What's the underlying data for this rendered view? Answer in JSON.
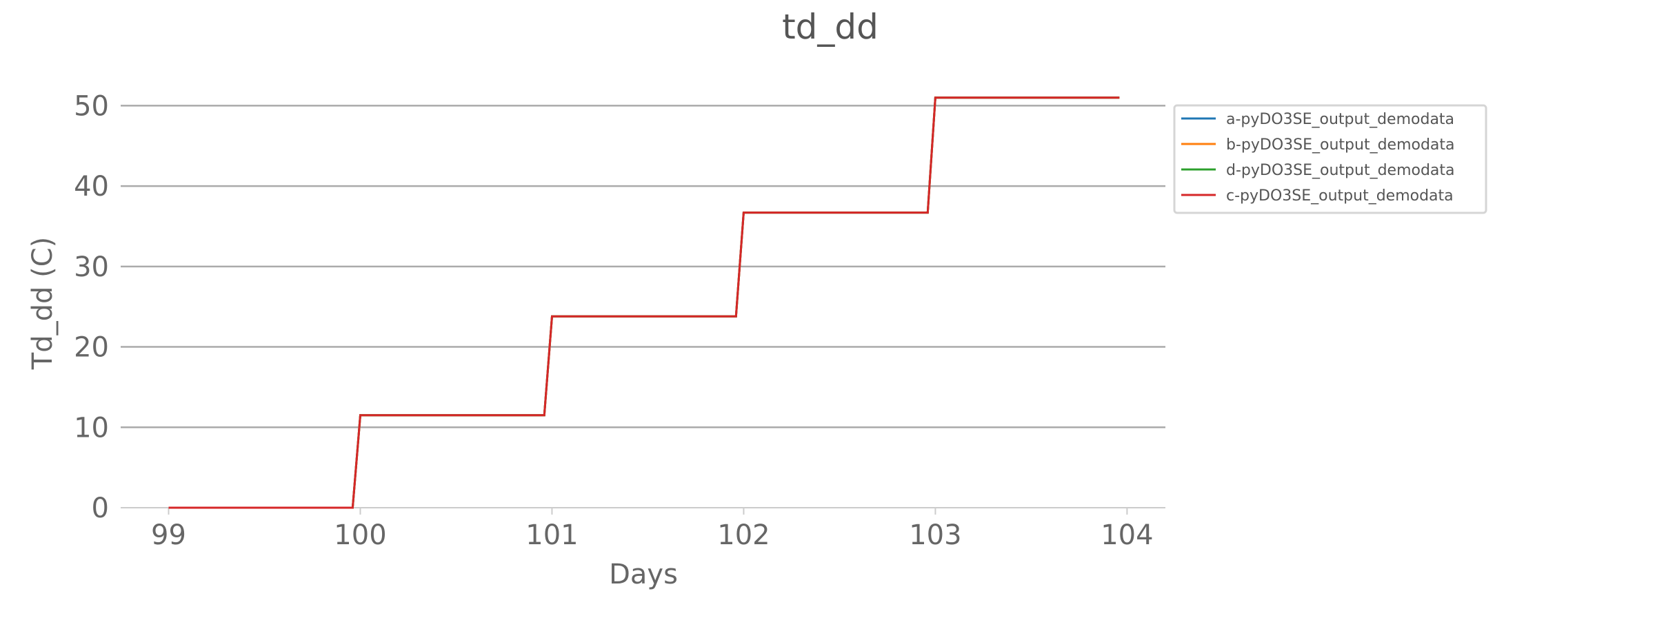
{
  "chart_data": {
    "type": "line",
    "title": "td_dd",
    "xlabel": "Days",
    "ylabel": "Td_dd (C)",
    "xlim": [
      98.75,
      104.2
    ],
    "ylim": [
      0,
      55
    ],
    "x_ticks": [
      99,
      100,
      101,
      102,
      103,
      104
    ],
    "y_ticks": [
      0,
      10,
      20,
      30,
      40,
      50
    ],
    "grid": "horizontal",
    "legend_position": "right",
    "series": [
      {
        "name": "a-pyDO3SE_output_demodata",
        "color": "#1f77b4",
        "x": [
          99,
          99.96,
          100,
          100.96,
          101,
          101.96,
          102,
          102.96,
          103,
          103.96
        ],
        "y": [
          0,
          0,
          11.5,
          11.5,
          23.8,
          23.8,
          36.7,
          36.7,
          51.0,
          51.0
        ]
      },
      {
        "name": "b-pyDO3SE_output_demodata",
        "color": "#ff7f0e",
        "x": [
          99,
          99.96,
          100,
          100.96,
          101,
          101.96,
          102,
          102.96,
          103,
          103.96
        ],
        "y": [
          0,
          0,
          11.5,
          11.5,
          23.8,
          23.8,
          36.7,
          36.7,
          51.0,
          51.0
        ]
      },
      {
        "name": "d-pyDO3SE_output_demodata",
        "color": "#2ca02c",
        "x": [
          99,
          99.96,
          100,
          100.96,
          101,
          101.96,
          102,
          102.96,
          103,
          103.96
        ],
        "y": [
          0,
          0,
          11.5,
          11.5,
          23.8,
          23.8,
          36.7,
          36.7,
          51.0,
          51.0
        ]
      },
      {
        "name": "c-pyDO3SE_output_demodata",
        "color": "#d62728",
        "x": [
          99,
          99.96,
          100,
          100.96,
          101,
          101.96,
          102,
          102.96,
          103,
          103.96
        ],
        "y": [
          0,
          0,
          11.5,
          11.5,
          23.8,
          23.8,
          36.7,
          36.7,
          51.0,
          51.0
        ]
      }
    ]
  }
}
